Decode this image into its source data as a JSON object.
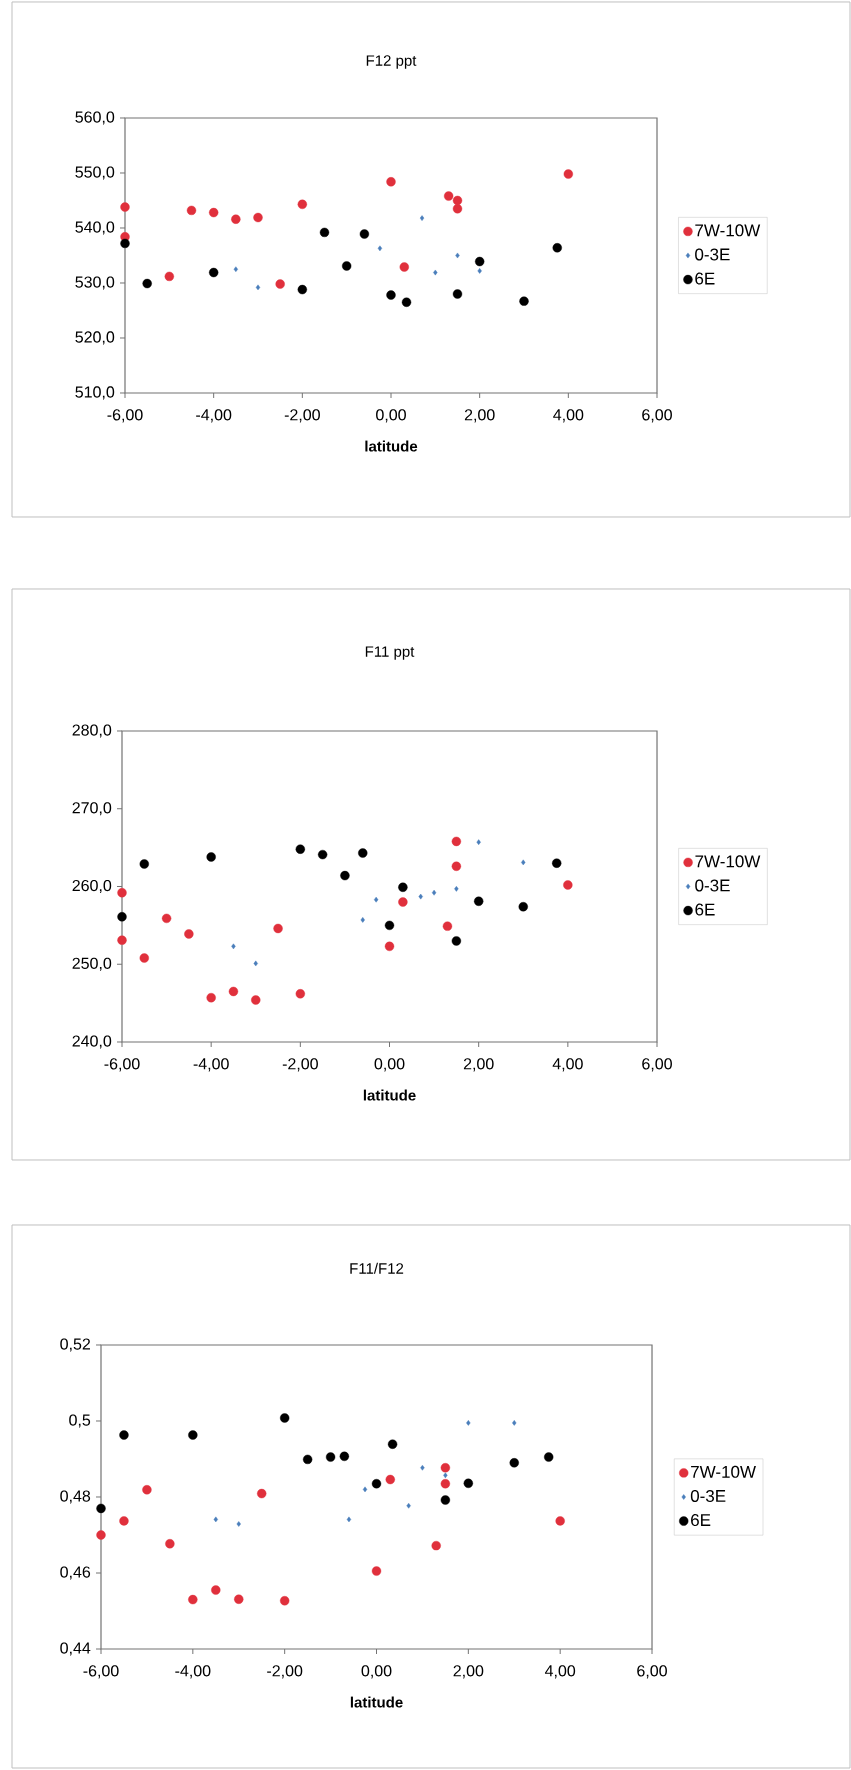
{
  "chart_data": [
    {
      "type": "scatter",
      "title": "F12 ppt",
      "xlabel": "latitude",
      "xlim": [
        -6,
        6
      ],
      "ylim": [
        510,
        560
      ],
      "legend": "right",
      "xticks": [
        {
          "value": -6,
          "label": "-6,00"
        },
        {
          "value": -4,
          "label": "-4,00"
        },
        {
          "value": -2,
          "label": "-2,00"
        },
        {
          "value": 0,
          "label": "0,00"
        },
        {
          "value": 2,
          "label": "2,00"
        },
        {
          "value": 4,
          "label": "4,00"
        },
        {
          "value": 6,
          "label": "6,00"
        }
      ],
      "yticks": [
        {
          "value": 510,
          "label": "510,0"
        },
        {
          "value": 520,
          "label": "520,0"
        },
        {
          "value": 530,
          "label": "530,0"
        },
        {
          "value": 540,
          "label": "540,0"
        },
        {
          "value": 550,
          "label": "550,0"
        },
        {
          "value": 560,
          "label": "560,0"
        }
      ],
      "series": [
        {
          "name": "7W-10W",
          "color": "#e0303c",
          "marker": "circle",
          "x": [
            -6,
            -6,
            -5,
            -4.5,
            -4,
            -3.5,
            -3,
            -2.5,
            -2,
            0,
            0.3,
            1.3,
            1.5,
            1.5,
            4
          ],
          "values": [
            543.8,
            538.4,
            531.2,
            543.2,
            542.8,
            541.6,
            541.9,
            529.8,
            544.3,
            548.4,
            532.9,
            545.8,
            545.0,
            543.5,
            549.8
          ]
        },
        {
          "name": "0-3E",
          "color": "#4a7ebb",
          "marker": "diamond",
          "x": [
            -3.5,
            -3,
            -0.25,
            0.7,
            1,
            1.5,
            2
          ],
          "values": [
            532.5,
            529.2,
            536.3,
            541.8,
            531.9,
            535.0,
            532.2
          ]
        },
        {
          "name": "6E",
          "color": "#000000",
          "marker": "circle",
          "x": [
            -6,
            -5.5,
            -4,
            -2,
            -1.5,
            -1,
            -0.6,
            0,
            0.35,
            1.5,
            2,
            3,
            3.75
          ],
          "values": [
            537.2,
            529.9,
            531.9,
            528.8,
            539.2,
            533.1,
            538.9,
            527.8,
            526.5,
            528.0,
            533.9,
            526.7,
            536.4
          ]
        }
      ]
    },
    {
      "type": "scatter",
      "title": "F11 ppt",
      "xlabel": "latitude",
      "xlim": [
        -6,
        6
      ],
      "ylim": [
        240,
        280
      ],
      "legend": "right",
      "xticks": [
        {
          "value": -6,
          "label": "-6,00"
        },
        {
          "value": -4,
          "label": "-4,00"
        },
        {
          "value": -2,
          "label": "-2,00"
        },
        {
          "value": 0,
          "label": "0,00"
        },
        {
          "value": 2,
          "label": "2,00"
        },
        {
          "value": 4,
          "label": "4,00"
        },
        {
          "value": 6,
          "label": "6,00"
        }
      ],
      "yticks": [
        {
          "value": 240,
          "label": "240,0"
        },
        {
          "value": 250,
          "label": "250,0"
        },
        {
          "value": 260,
          "label": "260,0"
        },
        {
          "value": 270,
          "label": "270,0"
        },
        {
          "value": 280,
          "label": "280,0"
        }
      ],
      "series": [
        {
          "name": "7W-10W",
          "color": "#e0303c",
          "marker": "circle",
          "x": [
            -6,
            -6,
            -5.5,
            -5,
            -4.5,
            -4,
            -3.5,
            -3,
            -2.5,
            -2,
            0,
            0.3,
            1.3,
            1.5,
            1.5,
            4
          ],
          "values": [
            259.2,
            253.1,
            250.8,
            255.9,
            253.9,
            245.7,
            246.5,
            245.4,
            254.6,
            246.2,
            252.3,
            258.0,
            254.9,
            265.8,
            262.6,
            260.2
          ]
        },
        {
          "name": "0-3E",
          "color": "#4a7ebb",
          "marker": "diamond",
          "x": [
            -3.5,
            -3,
            -0.6,
            -0.3,
            0.7,
            1,
            1.5,
            2,
            3
          ],
          "values": [
            252.3,
            250.1,
            255.7,
            258.3,
            258.7,
            259.2,
            259.7,
            265.7,
            263.1
          ]
        },
        {
          "name": "6E",
          "color": "#000000",
          "marker": "circle",
          "x": [
            -6,
            -5.5,
            -4,
            -2,
            -1.5,
            -1,
            -0.6,
            0,
            0.3,
            1.5,
            2,
            3,
            3.75
          ],
          "values": [
            256.1,
            262.9,
            263.8,
            264.8,
            264.1,
            261.4,
            264.3,
            255.0,
            259.9,
            253.0,
            258.1,
            257.4,
            263.0
          ]
        }
      ]
    },
    {
      "type": "scatter",
      "title": "F11/F12",
      "xlabel": "latitude",
      "xlim": [
        -6,
        6
      ],
      "ylim": [
        0.44,
        0.52
      ],
      "legend": "right",
      "xticks": [
        {
          "value": -6,
          "label": "-6,00"
        },
        {
          "value": -4,
          "label": "-4,00"
        },
        {
          "value": -2,
          "label": "-2,00"
        },
        {
          "value": 0,
          "label": "0,00"
        },
        {
          "value": 2,
          "label": "2,00"
        },
        {
          "value": 4,
          "label": "4,00"
        },
        {
          "value": 6,
          "label": "6,00"
        }
      ],
      "yticks": [
        {
          "value": 0.44,
          "label": "0,44"
        },
        {
          "value": 0.46,
          "label": "0,46"
        },
        {
          "value": 0.48,
          "label": "0,48"
        },
        {
          "value": 0.5,
          "label": "0,5"
        },
        {
          "value": 0.52,
          "label": "0,52"
        }
      ],
      "series": [
        {
          "name": "7W-10W",
          "color": "#e0303c",
          "marker": "circle",
          "x": [
            -6,
            -5.5,
            -5,
            -4.5,
            -4,
            -3.5,
            -3,
            -2.5,
            -2,
            0,
            0.3,
            1.3,
            1.5,
            1.5,
            4
          ],
          "values": [
            0.47,
            0.4737,
            0.4819,
            0.4677,
            0.453,
            0.4555,
            0.4531,
            0.4809,
            0.4527,
            0.4605,
            0.4846,
            0.4672,
            0.4877,
            0.4835,
            0.4737
          ]
        },
        {
          "name": "0-3E",
          "color": "#4a7ebb",
          "marker": "diamond",
          "x": [
            -3.5,
            -3,
            -0.6,
            -0.25,
            0.7,
            1,
            1.5,
            2,
            3
          ],
          "values": [
            0.4741,
            0.4729,
            0.4741,
            0.482,
            0.4777,
            0.4877,
            0.4857,
            0.4995,
            0.4995
          ]
        },
        {
          "name": "6E",
          "color": "#000000",
          "marker": "circle",
          "x": [
            -6,
            -5.5,
            -4,
            -2,
            -1.5,
            -1,
            -0.7,
            0,
            0.35,
            1.5,
            2,
            3,
            3.75
          ],
          "values": [
            0.477,
            0.4963,
            0.4963,
            0.5008,
            0.4899,
            0.4905,
            0.4907,
            0.4835,
            0.4939,
            0.4792,
            0.4836,
            0.489,
            0.4905
          ]
        }
      ]
    }
  ]
}
